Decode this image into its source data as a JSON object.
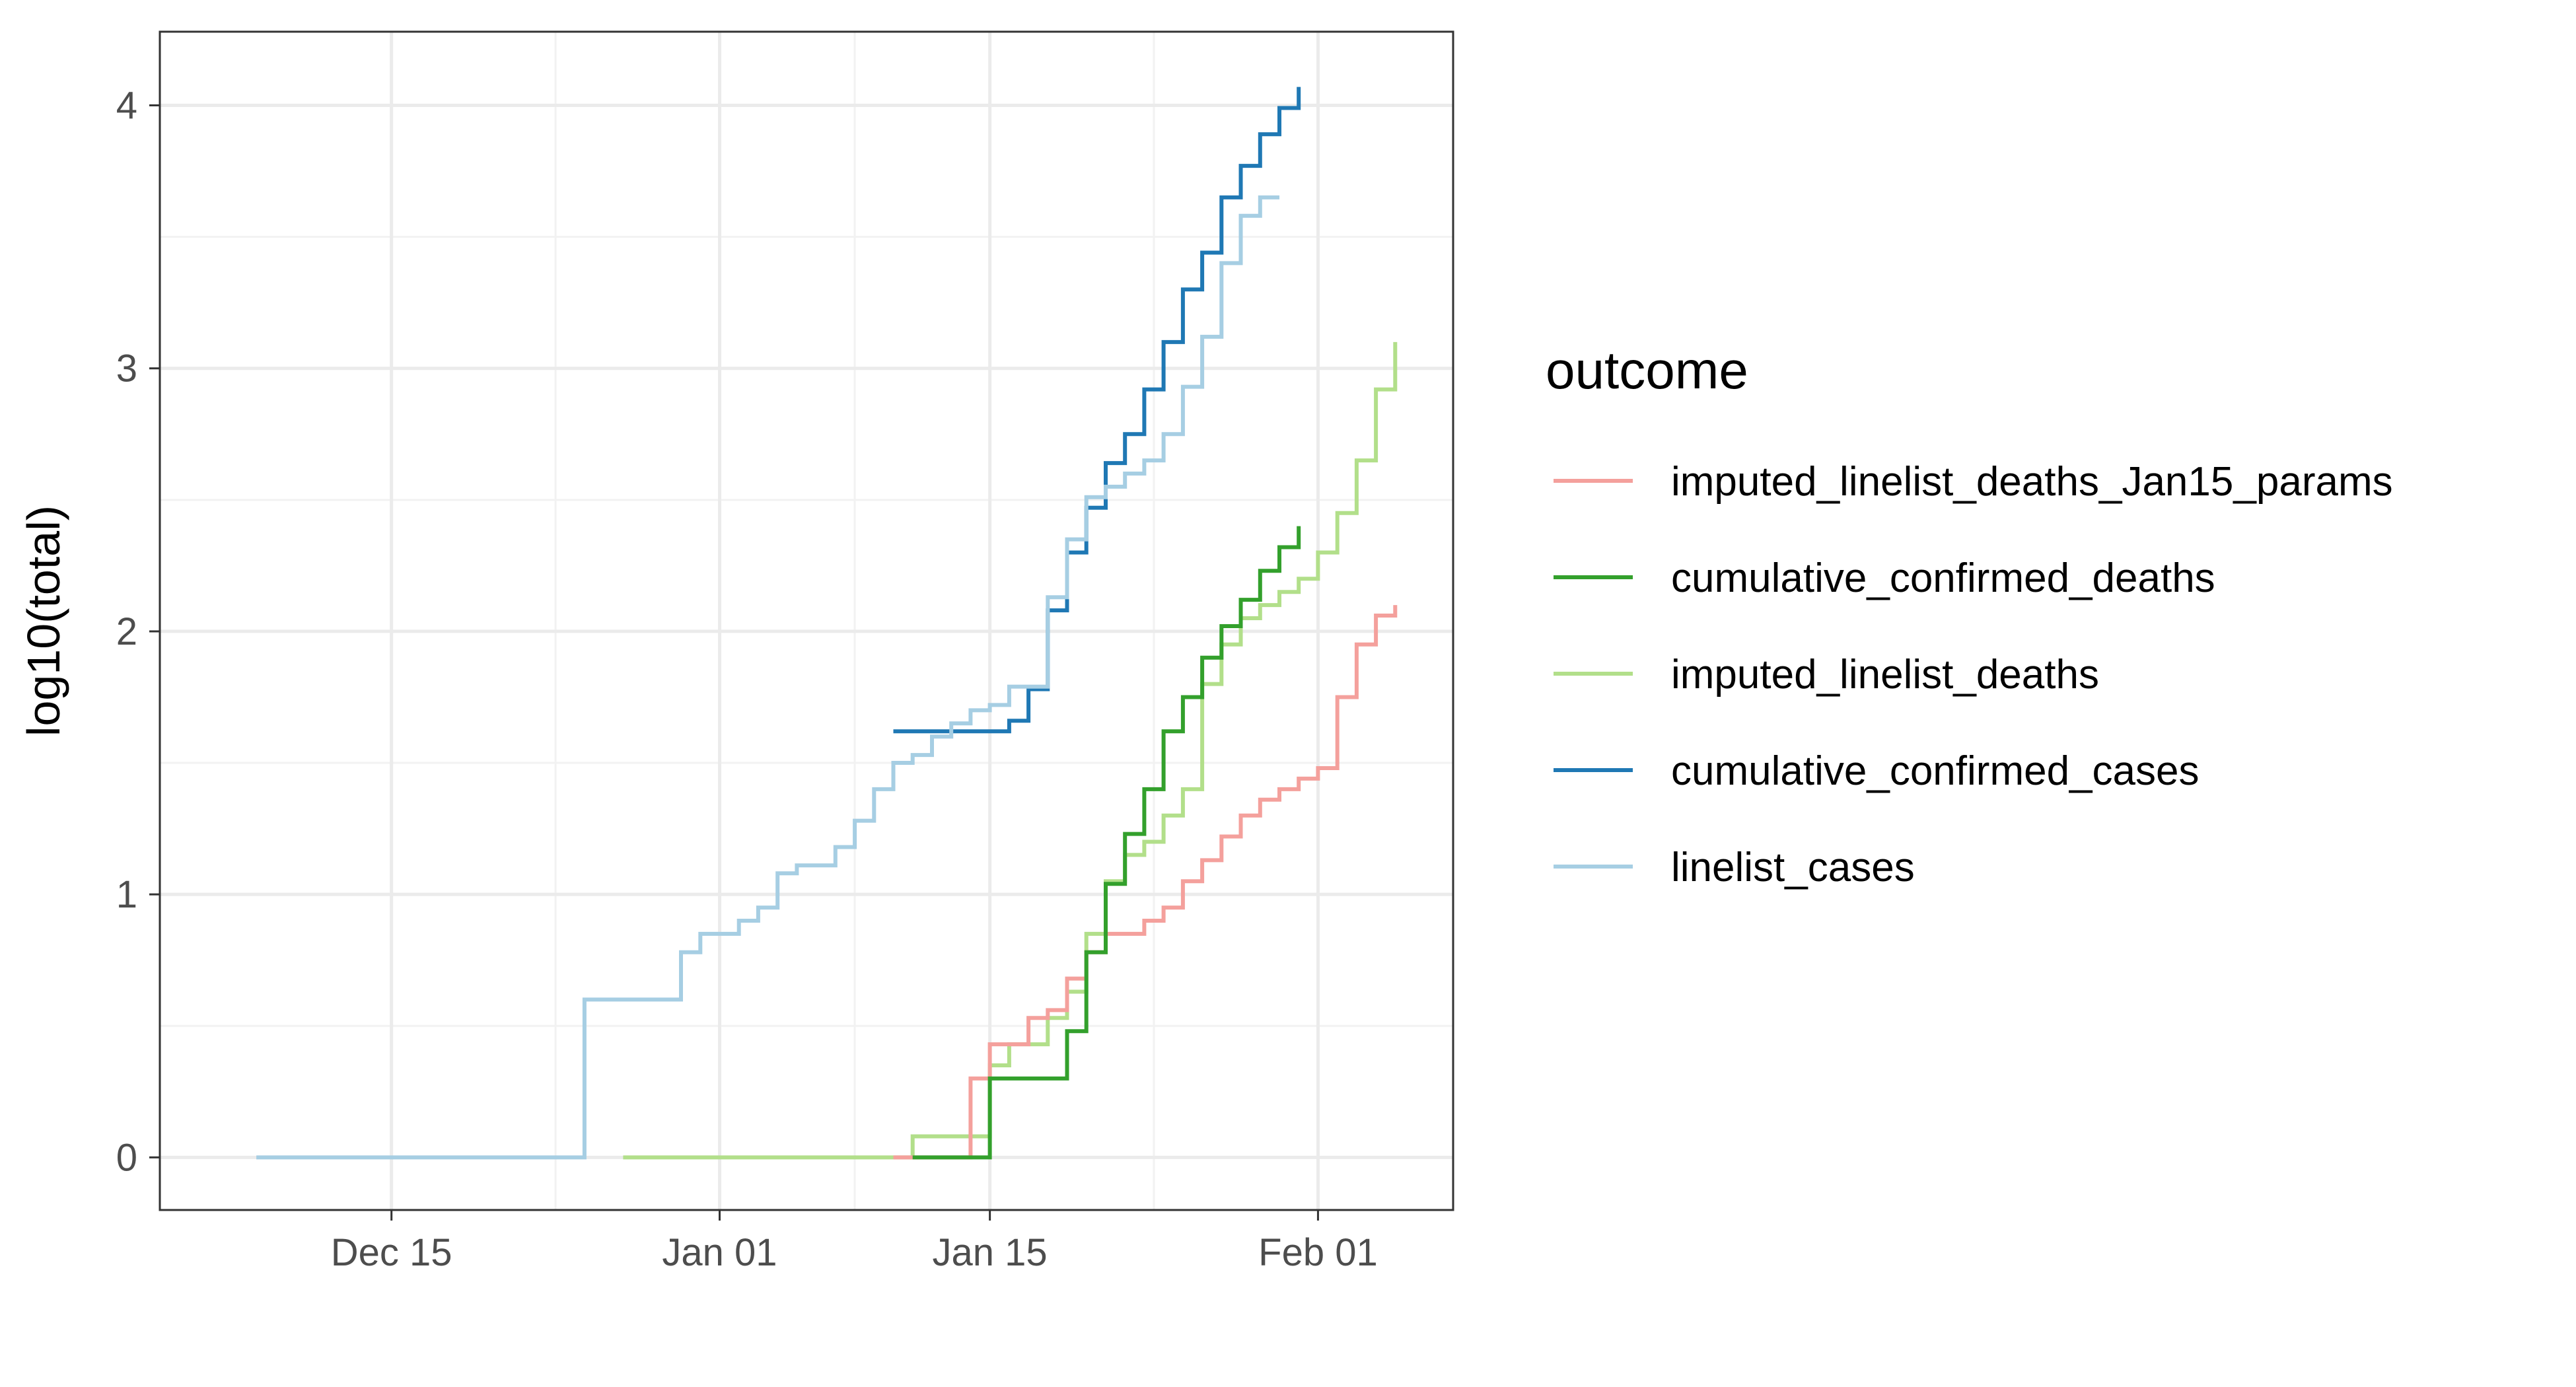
{
  "chart_data": {
    "type": "line",
    "step": true,
    "title": "",
    "xlabel": "",
    "ylabel": "log10(total)",
    "x_axis": {
      "type": "date",
      "range": [
        "2019-12-03",
        "2020-02-08"
      ],
      "ticks": [
        {
          "date": "2019-12-15",
          "label": "Dec 15"
        },
        {
          "date": "2020-01-01",
          "label": "Jan 01"
        },
        {
          "date": "2020-01-15",
          "label": "Jan 15"
        },
        {
          "date": "2020-02-01",
          "label": "Feb 01"
        }
      ]
    },
    "y_axis": {
      "range": [
        -0.2,
        4.28
      ],
      "ticks": [
        0,
        1,
        2,
        3,
        4
      ]
    },
    "grid": true,
    "legend": {
      "title": "outcome",
      "position": "right"
    },
    "series": [
      {
        "name": "imputed_linelist_deaths_Jan15_params",
        "color": "#F4A09C",
        "points": [
          [
            "2020-01-10",
            0.0
          ],
          [
            "2020-01-14",
            0.3
          ],
          [
            "2020-01-15",
            0.43
          ],
          [
            "2020-01-17",
            0.53
          ],
          [
            "2020-01-18",
            0.56
          ],
          [
            "2020-01-19",
            0.68
          ],
          [
            "2020-01-20",
            0.78
          ],
          [
            "2020-01-21",
            0.85
          ],
          [
            "2020-01-23",
            0.9
          ],
          [
            "2020-01-24",
            0.95
          ],
          [
            "2020-01-25",
            1.05
          ],
          [
            "2020-01-26",
            1.13
          ],
          [
            "2020-01-27",
            1.22
          ],
          [
            "2020-01-28",
            1.3
          ],
          [
            "2020-01-29",
            1.36
          ],
          [
            "2020-01-30",
            1.4
          ],
          [
            "2020-01-31",
            1.44
          ],
          [
            "2020-02-01",
            1.48
          ],
          [
            "2020-02-02",
            1.75
          ],
          [
            "2020-02-03",
            1.95
          ],
          [
            "2020-02-04",
            2.06
          ],
          [
            "2020-02-05",
            2.1
          ]
        ]
      },
      {
        "name": "cumulative_confirmed_deaths",
        "color": "#33A02C",
        "points": [
          [
            "2020-01-11",
            0.0
          ],
          [
            "2020-01-15",
            0.3
          ],
          [
            "2020-01-19",
            0.48
          ],
          [
            "2020-01-20",
            0.78
          ],
          [
            "2020-01-21",
            1.04
          ],
          [
            "2020-01-22",
            1.23
          ],
          [
            "2020-01-23",
            1.4
          ],
          [
            "2020-01-24",
            1.62
          ],
          [
            "2020-01-25",
            1.75
          ],
          [
            "2020-01-26",
            1.9
          ],
          [
            "2020-01-27",
            2.02
          ],
          [
            "2020-01-28",
            2.12
          ],
          [
            "2020-01-29",
            2.23
          ],
          [
            "2020-01-30",
            2.32
          ],
          [
            "2020-01-31",
            2.4
          ]
        ]
      },
      {
        "name": "imputed_linelist_deaths",
        "color": "#B2DF8A",
        "points": [
          [
            "2019-12-27",
            0.0
          ],
          [
            "2020-01-11",
            0.08
          ],
          [
            "2020-01-15",
            0.35
          ],
          [
            "2020-01-16",
            0.43
          ],
          [
            "2020-01-18",
            0.53
          ],
          [
            "2020-01-19",
            0.63
          ],
          [
            "2020-01-20",
            0.85
          ],
          [
            "2020-01-21",
            1.05
          ],
          [
            "2020-01-22",
            1.15
          ],
          [
            "2020-01-23",
            1.2
          ],
          [
            "2020-01-24",
            1.3
          ],
          [
            "2020-01-25",
            1.4
          ],
          [
            "2020-01-26",
            1.8
          ],
          [
            "2020-01-27",
            1.95
          ],
          [
            "2020-01-28",
            2.05
          ],
          [
            "2020-01-29",
            2.1
          ],
          [
            "2020-01-30",
            2.15
          ],
          [
            "2020-01-31",
            2.2
          ],
          [
            "2020-02-01",
            2.3
          ],
          [
            "2020-02-02",
            2.45
          ],
          [
            "2020-02-03",
            2.65
          ],
          [
            "2020-02-04",
            2.92
          ],
          [
            "2020-02-05",
            3.1
          ]
        ]
      },
      {
        "name": "cumulative_confirmed_cases",
        "color": "#1F78B4",
        "points": [
          [
            "2020-01-10",
            1.62
          ],
          [
            "2020-01-16",
            1.66
          ],
          [
            "2020-01-17",
            1.78
          ],
          [
            "2020-01-18",
            2.08
          ],
          [
            "2020-01-19",
            2.3
          ],
          [
            "2020-01-20",
            2.47
          ],
          [
            "2020-01-21",
            2.64
          ],
          [
            "2020-01-22",
            2.75
          ],
          [
            "2020-01-23",
            2.92
          ],
          [
            "2020-01-24",
            3.1
          ],
          [
            "2020-01-25",
            3.3
          ],
          [
            "2020-01-26",
            3.44
          ],
          [
            "2020-01-27",
            3.65
          ],
          [
            "2020-01-28",
            3.77
          ],
          [
            "2020-01-29",
            3.89
          ],
          [
            "2020-01-30",
            3.99
          ],
          [
            "2020-01-31",
            4.07
          ]
        ]
      },
      {
        "name": "linelist_cases",
        "color": "#A6CEE3",
        "points": [
          [
            "2019-12-08",
            0.0
          ],
          [
            "2019-12-25",
            0.6
          ],
          [
            "2019-12-30",
            0.78
          ],
          [
            "2019-12-31",
            0.85
          ],
          [
            "2020-01-02",
            0.9
          ],
          [
            "2020-01-03",
            0.95
          ],
          [
            "2020-01-04",
            1.08
          ],
          [
            "2020-01-05",
            1.11
          ],
          [
            "2020-01-07",
            1.18
          ],
          [
            "2020-01-08",
            1.28
          ],
          [
            "2020-01-09",
            1.4
          ],
          [
            "2020-01-10",
            1.5
          ],
          [
            "2020-01-11",
            1.53
          ],
          [
            "2020-01-12",
            1.6
          ],
          [
            "2020-01-13",
            1.65
          ],
          [
            "2020-01-14",
            1.7
          ],
          [
            "2020-01-15",
            1.72
          ],
          [
            "2020-01-16",
            1.79
          ],
          [
            "2020-01-18",
            2.13
          ],
          [
            "2020-01-19",
            2.35
          ],
          [
            "2020-01-20",
            2.51
          ],
          [
            "2020-01-21",
            2.55
          ],
          [
            "2020-01-22",
            2.6
          ],
          [
            "2020-01-23",
            2.65
          ],
          [
            "2020-01-24",
            2.75
          ],
          [
            "2020-01-25",
            2.93
          ],
          [
            "2020-01-26",
            3.12
          ],
          [
            "2020-01-27",
            3.4
          ],
          [
            "2020-01-28",
            3.58
          ],
          [
            "2020-01-29",
            3.65
          ],
          [
            "2020-01-30",
            3.65
          ]
        ]
      }
    ]
  }
}
